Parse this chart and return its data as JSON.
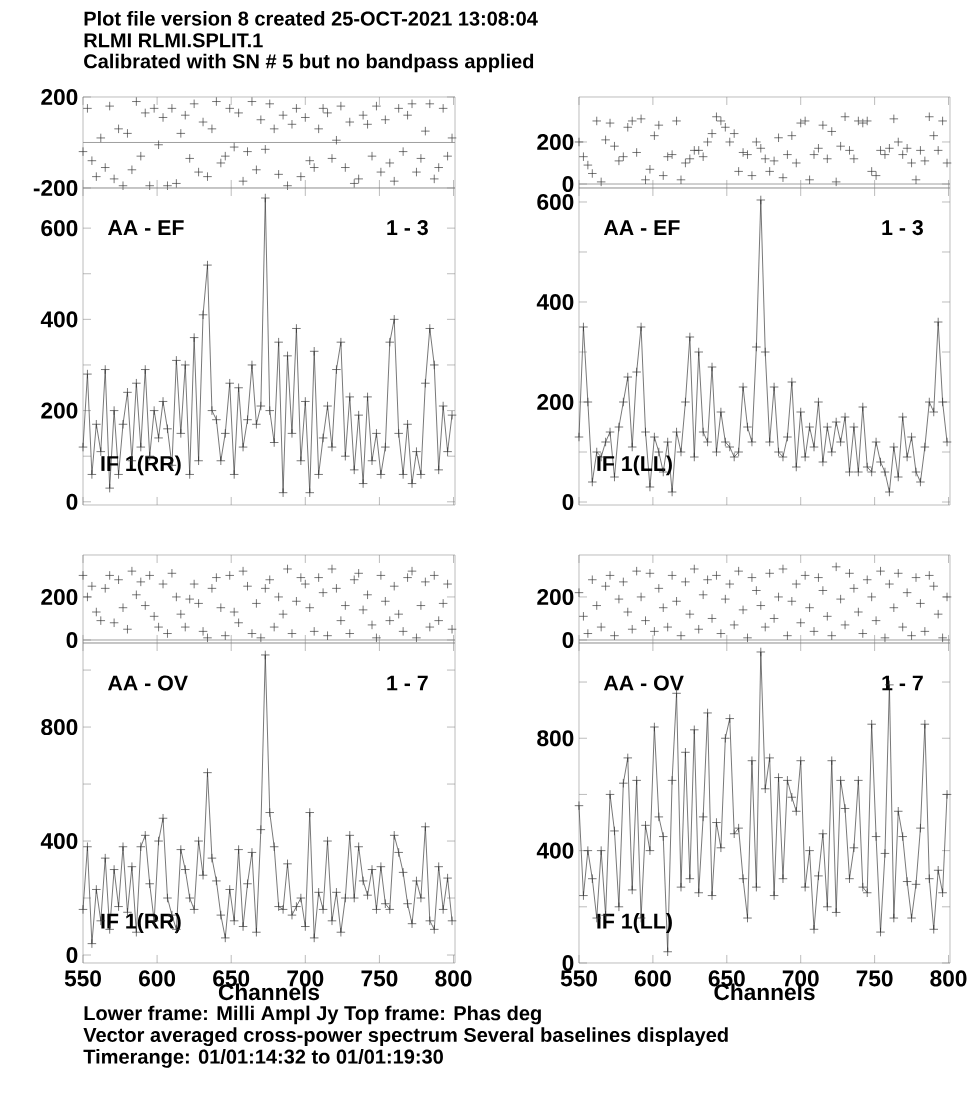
{
  "chart_data": [
    {
      "type": "scatter",
      "title": "Plot file version 8  created 25-OCT-2021 13:08:04",
      "annotations": [
        "RLMI   RLMI.SPLIT.1",
        "Calibrated with SN # 5 but no bandpass applied"
      ],
      "marker": "cross",
      "color": "#333333",
      "xlim": [
        550,
        801
      ],
      "ylim": [
        -200,
        200
      ],
      "xticks": [
        550,
        600,
        650,
        700,
        750,
        800
      ],
      "yticks": [
        -200,
        200
      ],
      "tick_labels": "y",
      "ref_lines": [
        {
          "axis": "y",
          "value": 0,
          "color": "#888888"
        }
      ],
      "x": [
        550,
        553,
        556,
        559,
        562,
        565,
        568,
        571,
        574,
        577,
        580,
        583,
        586,
        589,
        592,
        595,
        598,
        601,
        604,
        607,
        610,
        613,
        616,
        619,
        622,
        625,
        628,
        631,
        634,
        637,
        640,
        643,
        646,
        649,
        652,
        655,
        658,
        661,
        664,
        667,
        670,
        673,
        676,
        679,
        682,
        685,
        688,
        691,
        694,
        697,
        700,
        703,
        706,
        709,
        712,
        715,
        718,
        721,
        724,
        727,
        730,
        733,
        736,
        739,
        742,
        745,
        748,
        751,
        754,
        757,
        760,
        763,
        766,
        769,
        772,
        775,
        778,
        781,
        784,
        787,
        790,
        793,
        796,
        799
      ],
      "values": [
        -40,
        150,
        -80,
        -150,
        20,
        -110,
        160,
        -160,
        60,
        -190,
        40,
        -120,
        180,
        -60,
        130,
        -190,
        150,
        -10,
        110,
        -190,
        150,
        -180,
        40,
        120,
        -70,
        170,
        -130,
        90,
        -150,
        60,
        180,
        -90,
        -60,
        150,
        -20,
        130,
        -170,
        -40,
        180,
        -120,
        100,
        -30,
        170,
        60,
        -140,
        120,
        -190,
        80,
        150,
        -150,
        110,
        -80,
        -110,
        60,
        150,
        130,
        -70,
        10,
        160,
        -110,
        90,
        -180,
        -160,
        120,
        80,
        -60,
        160,
        -130,
        100,
        -90,
        -170,
        150,
        -40,
        120,
        170,
        -130,
        -70,
        50,
        170,
        -160,
        -110,
        150,
        -60,
        20
      ]
    },
    {
      "type": "line",
      "marker": "cross",
      "color": "#333333",
      "xlim": [
        550,
        801
      ],
      "ylim": [
        -7,
        688
      ],
      "xticks": [
        550,
        600,
        650,
        700,
        750,
        800
      ],
      "yticks": [
        0,
        {
          "value": 100,
          "label": null
        },
        200,
        {
          "value": 300,
          "label": null
        },
        400,
        {
          "value": 500,
          "label": null
        },
        600
      ],
      "tick_labels": "y",
      "annotations": [
        "AA - EF",
        "1 - 3",
        "IF 1(RR)"
      ],
      "x": [
        550,
        553,
        556,
        559,
        562,
        565,
        568,
        571,
        574,
        577,
        580,
        583,
        586,
        589,
        592,
        595,
        598,
        601,
        604,
        607,
        610,
        613,
        616,
        619,
        622,
        625,
        628,
        631,
        634,
        637,
        640,
        643,
        646,
        649,
        652,
        655,
        658,
        661,
        664,
        667,
        670,
        673,
        676,
        679,
        682,
        685,
        688,
        691,
        694,
        697,
        700,
        703,
        706,
        709,
        712,
        715,
        718,
        721,
        724,
        727,
        730,
        733,
        736,
        739,
        742,
        745,
        748,
        751,
        754,
        757,
        760,
        763,
        766,
        769,
        772,
        775,
        778,
        781,
        784,
        787,
        790,
        793,
        796,
        799
      ],
      "values": [
        120,
        280,
        60,
        170,
        110,
        290,
        30,
        200,
        60,
        170,
        240,
        90,
        260,
        120,
        290,
        100,
        200,
        140,
        220,
        160,
        80,
        310,
        150,
        300,
        60,
        360,
        90,
        410,
        519,
        200,
        180,
        90,
        150,
        260,
        60,
        250,
        120,
        180,
        300,
        170,
        210,
        666,
        200,
        130,
        350,
        20,
        320,
        150,
        380,
        90,
        220,
        20,
        330,
        60,
        140,
        210,
        120,
        290,
        350,
        100,
        230,
        70,
        190,
        40,
        230,
        90,
        150,
        60,
        120,
        350,
        400,
        150,
        60,
        170,
        40,
        110,
        60,
        260,
        380,
        300,
        70,
        210,
        110,
        190
      ]
    },
    {
      "type": "scatter",
      "marker": "cross",
      "color": "#333333",
      "xlim": [
        550,
        801
      ],
      "ylim": [
        -19,
        414
      ],
      "xticks": [
        550,
        600,
        650,
        700,
        750,
        800
      ],
      "yticks": [
        0,
        200
      ],
      "tick_labels": "y",
      "ref_lines": [
        {
          "axis": "y",
          "value": 0,
          "color": "#888888"
        }
      ],
      "x": [
        550,
        553,
        556,
        559,
        562,
        565,
        568,
        571,
        574,
        577,
        580,
        583,
        586,
        589,
        592,
        595,
        598,
        601,
        604,
        607,
        610,
        613,
        616,
        619,
        622,
        625,
        628,
        631,
        634,
        637,
        640,
        643,
        646,
        649,
        652,
        655,
        658,
        661,
        664,
        667,
        670,
        673,
        676,
        679,
        682,
        685,
        688,
        691,
        694,
        697,
        700,
        703,
        706,
        709,
        712,
        715,
        718,
        721,
        724,
        727,
        730,
        733,
        736,
        739,
        742,
        745,
        748,
        751,
        754,
        757,
        760,
        763,
        766,
        769,
        772,
        775,
        778,
        781,
        784,
        787,
        790,
        793,
        796,
        799
      ],
      "values": [
        200,
        130,
        90,
        50,
        300,
        10,
        210,
        290,
        180,
        110,
        130,
        270,
        300,
        150,
        310,
        20,
        70,
        230,
        280,
        40,
        130,
        140,
        300,
        20,
        100,
        120,
        160,
        160,
        130,
        200,
        240,
        320,
        300,
        270,
        200,
        240,
        60,
        150,
        140,
        40,
        200,
        170,
        120,
        60,
        110,
        220,
        30,
        140,
        230,
        100,
        290,
        300,
        20,
        140,
        170,
        280,
        120,
        250,
        10,
        180,
        320,
        160,
        120,
        300,
        290,
        300,
        60,
        40,
        160,
        140,
        170,
        310,
        200,
        140,
        170,
        100,
        20,
        160,
        110,
        320,
        230,
        160,
        300,
        100
      ]
    },
    {
      "type": "line",
      "marker": "cross",
      "color": "#333333",
      "xlim": [
        550,
        801
      ],
      "ylim": [
        -6,
        628
      ],
      "xticks": [
        550,
        600,
        650,
        700,
        750,
        800
      ],
      "yticks": [
        0,
        {
          "value": 100,
          "label": null
        },
        200,
        {
          "value": 300,
          "label": null
        },
        400,
        {
          "value": 500,
          "label": null
        },
        600
      ],
      "tick_labels": "y",
      "annotations": [
        "AA - EF",
        "1 - 3",
        "IF 1(LL)"
      ],
      "x": [
        550,
        553,
        556,
        559,
        562,
        565,
        568,
        571,
        574,
        577,
        580,
        583,
        586,
        589,
        592,
        595,
        598,
        601,
        604,
        607,
        610,
        613,
        616,
        619,
        622,
        625,
        628,
        631,
        634,
        637,
        640,
        643,
        646,
        649,
        652,
        655,
        658,
        661,
        664,
        667,
        670,
        673,
        676,
        679,
        682,
        685,
        688,
        691,
        694,
        697,
        700,
        703,
        706,
        709,
        712,
        715,
        718,
        721,
        724,
        727,
        730,
        733,
        736,
        739,
        742,
        745,
        748,
        751,
        754,
        757,
        760,
        763,
        766,
        769,
        772,
        775,
        778,
        781,
        784,
        787,
        790,
        793,
        796,
        799
      ],
      "values": [
        130,
        350,
        200,
        40,
        100,
        90,
        120,
        140,
        50,
        150,
        200,
        250,
        110,
        260,
        350,
        140,
        30,
        130,
        100,
        60,
        120,
        20,
        140,
        100,
        200,
        330,
        90,
        300,
        140,
        120,
        270,
        100,
        180,
        120,
        110,
        90,
        100,
        230,
        150,
        120,
        310,
        604,
        300,
        120,
        230,
        100,
        90,
        130,
        240,
        70,
        180,
        90,
        150,
        110,
        200,
        80,
        150,
        100,
        160,
        120,
        170,
        60,
        150,
        60,
        190,
        70,
        60,
        120,
        80,
        60,
        20,
        110,
        50,
        170,
        90,
        130,
        60,
        40,
        110,
        200,
        180,
        360,
        200,
        120
      ]
    },
    {
      "type": "scatter",
      "marker": "cross",
      "color": "#333333",
      "xlim": [
        550,
        801
      ],
      "ylim": [
        -14,
        395
      ],
      "xticks": [
        550,
        600,
        650,
        700,
        750,
        800
      ],
      "yticks": [
        0,
        200
      ],
      "tick_labels": "y",
      "ref_lines": [
        {
          "axis": "y",
          "value": 0,
          "color": "#888888"
        }
      ],
      "x": [
        550,
        553,
        556,
        559,
        562,
        565,
        568,
        571,
        574,
        577,
        580,
        583,
        586,
        589,
        592,
        595,
        598,
        601,
        604,
        607,
        610,
        613,
        616,
        619,
        622,
        625,
        628,
        631,
        634,
        637,
        640,
        643,
        646,
        649,
        652,
        655,
        658,
        661,
        664,
        667,
        670,
        673,
        676,
        679,
        682,
        685,
        688,
        691,
        694,
        697,
        700,
        703,
        706,
        709,
        712,
        715,
        718,
        721,
        724,
        727,
        730,
        733,
        736,
        739,
        742,
        745,
        748,
        751,
        754,
        757,
        760,
        763,
        766,
        769,
        772,
        775,
        778,
        781,
        784,
        787,
        790,
        793,
        796,
        799
      ],
      "values": [
        300,
        200,
        250,
        130,
        90,
        240,
        300,
        80,
        280,
        150,
        50,
        320,
        210,
        270,
        160,
        300,
        110,
        60,
        260,
        30,
        310,
        200,
        120,
        60,
        190,
        260,
        170,
        40,
        10,
        240,
        290,
        150,
        20,
        300,
        130,
        80,
        320,
        250,
        30,
        170,
        10,
        240,
        280,
        60,
        200,
        120,
        330,
        30,
        180,
        290,
        260,
        150,
        40,
        290,
        220,
        20,
        330,
        240,
        90,
        160,
        30,
        280,
        310,
        140,
        210,
        70,
        10,
        300,
        180,
        90,
        250,
        120,
        40,
        290,
        320,
        10,
        160,
        270,
        60,
        300,
        90,
        170,
        260,
        50
      ]
    },
    {
      "type": "line",
      "marker": "cross",
      "color": "#333333",
      "xlim": [
        550,
        801
      ],
      "ylim": [
        -28,
        1095
      ],
      "xticks": [
        550,
        600,
        650,
        700,
        750,
        800
      ],
      "yticks": [
        0,
        {
          "value": 200,
          "label": null
        },
        400,
        {
          "value": 600,
          "label": null
        },
        800,
        {
          "value": 1000,
          "label": null
        }
      ],
      "xlabel": "Channels",
      "annotations": [
        "AA - OV",
        "1 - 7",
        "IF 1(RR)",
        "Lower frame: Milli Ampl Jy   Top frame: Phas deg",
        "Vector averaged cross-power spectrum    Several baselines displayed",
        "Timerange: 01/01:14:32 to 01/01:19:30"
      ],
      "x": [
        550,
        553,
        556,
        559,
        562,
        565,
        568,
        571,
        574,
        577,
        580,
        583,
        586,
        589,
        592,
        595,
        598,
        601,
        604,
        607,
        610,
        613,
        616,
        619,
        622,
        625,
        628,
        631,
        634,
        637,
        640,
        643,
        646,
        649,
        652,
        655,
        658,
        661,
        664,
        667,
        670,
        673,
        676,
        679,
        682,
        685,
        688,
        691,
        694,
        697,
        700,
        703,
        706,
        709,
        712,
        715,
        718,
        721,
        724,
        727,
        730,
        733,
        736,
        739,
        742,
        745,
        748,
        751,
        754,
        757,
        760,
        763,
        766,
        769,
        772,
        775,
        778,
        781,
        784,
        787,
        790,
        793,
        796,
        799
      ],
      "values": [
        160,
        380,
        40,
        230,
        120,
        340,
        90,
        300,
        170,
        380,
        150,
        310,
        80,
        380,
        420,
        250,
        120,
        400,
        480,
        200,
        140,
        90,
        370,
        300,
        200,
        160,
        400,
        280,
        640,
        340,
        260,
        140,
        60,
        230,
        120,
        370,
        100,
        250,
        360,
        80,
        440,
        1053,
        500,
        380,
        170,
        160,
        320,
        140,
        170,
        200,
        100,
        500,
        60,
        220,
        160,
        400,
        120,
        220,
        80,
        200,
        420,
        200,
        380,
        260,
        210,
        300,
        160,
        310,
        180,
        160,
        420,
        360,
        290,
        180,
        110,
        260,
        200,
        450,
        120,
        90,
        310,
        160,
        270,
        120
      ]
    },
    {
      "type": "scatter",
      "marker": "cross",
      "color": "#333333",
      "xlim": [
        550,
        801
      ],
      "ylim": [
        -14,
        395
      ],
      "xticks": [
        550,
        600,
        650,
        700,
        750,
        800
      ],
      "yticks": [
        0,
        200
      ],
      "tick_labels": "y",
      "ref_lines": [
        {
          "axis": "y",
          "value": 0,
          "color": "#888888"
        }
      ],
      "x": [
        550,
        553,
        556,
        559,
        562,
        565,
        568,
        571,
        574,
        577,
        580,
        583,
        586,
        589,
        592,
        595,
        598,
        601,
        604,
        607,
        610,
        613,
        616,
        619,
        622,
        625,
        628,
        631,
        634,
        637,
        640,
        643,
        646,
        649,
        652,
        655,
        658,
        661,
        664,
        667,
        670,
        673,
        676,
        679,
        682,
        685,
        688,
        691,
        694,
        697,
        700,
        703,
        706,
        709,
        712,
        715,
        718,
        721,
        724,
        727,
        730,
        733,
        736,
        739,
        742,
        745,
        748,
        751,
        754,
        757,
        760,
        763,
        766,
        769,
        772,
        775,
        778,
        781,
        784,
        787,
        790,
        793,
        796,
        799
      ],
      "values": [
        220,
        110,
        30,
        280,
        160,
        60,
        250,
        300,
        20,
        190,
        270,
        130,
        50,
        320,
        200,
        90,
        310,
        40,
        240,
        150,
        60,
        300,
        180,
        20,
        270,
        120,
        330,
        50,
        210,
        280,
        100,
        300,
        30,
        190,
        260,
        70,
        320,
        140,
        10,
        290,
        230,
        160,
        60,
        310,
        100,
        200,
        330,
        20,
        180,
        260,
        80,
        300,
        150,
        40,
        290,
        230,
        110,
        20,
        340,
        190,
        70,
        310,
        240,
        130,
        30,
        280,
        200,
        90,
        320,
        10,
        260,
        150,
        310,
        60,
        220,
        20,
        290,
        170,
        40,
        300,
        250,
        120,
        10,
        200
      ]
    },
    {
      "type": "line",
      "marker": "cross",
      "color": "#333333",
      "xlim": [
        550,
        801
      ],
      "ylim": [
        0,
        1139
      ],
      "xticks": [
        550,
        600,
        650,
        700,
        750,
        800
      ],
      "yticks": [
        0,
        {
          "value": 200,
          "label": null
        },
        400,
        {
          "value": 600,
          "label": null
        },
        800,
        {
          "value": 1000,
          "label": null
        }
      ],
      "xlabel": "Channels",
      "annotations": [
        "AA - OV",
        "1 - 7",
        "IF 1(LL)"
      ],
      "x": [
        550,
        553,
        556,
        559,
        562,
        565,
        568,
        571,
        574,
        577,
        580,
        583,
        586,
        589,
        592,
        595,
        598,
        601,
        604,
        607,
        610,
        613,
        616,
        619,
        622,
        625,
        628,
        631,
        634,
        637,
        640,
        643,
        646,
        649,
        652,
        655,
        658,
        661,
        664,
        667,
        670,
        673,
        676,
        679,
        682,
        685,
        688,
        691,
        694,
        697,
        700,
        703,
        706,
        709,
        712,
        715,
        718,
        721,
        724,
        727,
        730,
        733,
        736,
        739,
        742,
        745,
        748,
        751,
        754,
        757,
        760,
        763,
        766,
        769,
        772,
        775,
        778,
        781,
        784,
        787,
        790,
        793,
        796,
        799
      ],
      "values": [
        560,
        240,
        400,
        300,
        160,
        400,
        170,
        600,
        470,
        200,
        640,
        730,
        260,
        650,
        160,
        490,
        400,
        840,
        520,
        450,
        40,
        650,
        960,
        270,
        750,
        300,
        830,
        250,
        520,
        890,
        240,
        500,
        410,
        800,
        870,
        460,
        480,
        300,
        160,
        720,
        270,
        1107,
        620,
        730,
        240,
        660,
        300,
        650,
        590,
        540,
        720,
        270,
        400,
        120,
        310,
        460,
        200,
        720,
        180,
        650,
        550,
        300,
        410,
        650,
        270,
        250,
        850,
        450,
        110,
        390,
        990,
        160,
        540,
        450,
        290,
        160,
        280,
        480,
        850,
        300,
        120,
        330,
        250,
        600
      ]
    }
  ]
}
